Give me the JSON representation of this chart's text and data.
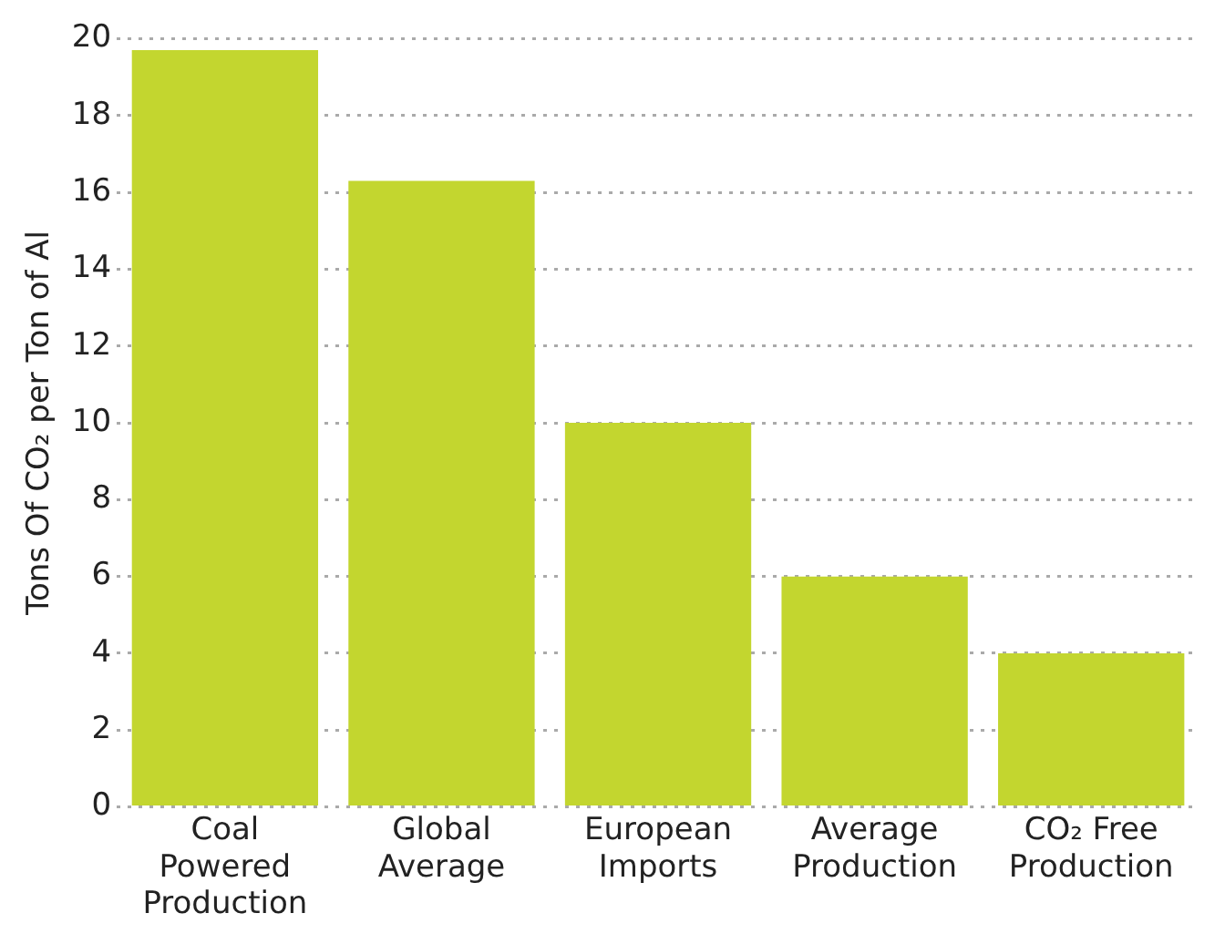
{
  "chart_data": {
    "type": "bar",
    "ylabel": "Tons Of CO₂ per Ton of Al",
    "categories": [
      "Coal Powered Production",
      "Global Average",
      "European Imports",
      "Average Production",
      "CO₂ Free Production"
    ],
    "values": [
      19.7,
      16.3,
      10,
      6,
      4
    ],
    "color": "#c3d62f",
    "ylim": [
      0,
      20
    ],
    "yticks": [
      0,
      2,
      4,
      6,
      8,
      10,
      12,
      14,
      16,
      18,
      20
    ],
    "grid": "y",
    "legend": false
  }
}
